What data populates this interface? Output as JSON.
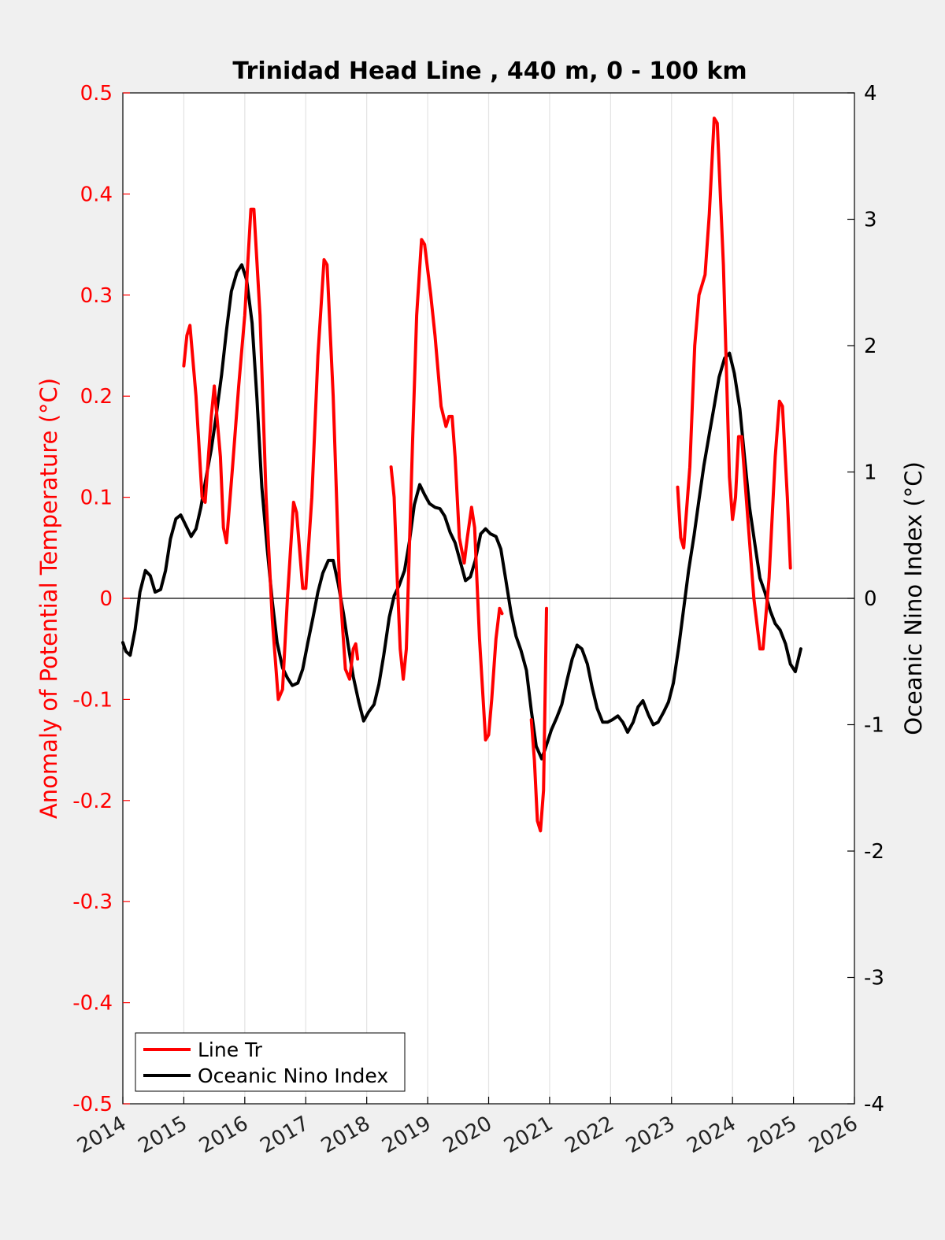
{
  "chart_data": {
    "type": "line",
    "title": "Trinidad Head Line , 440 m, 0 - 100 km",
    "xlabel": "",
    "ylabel_left": "Anomaly of Potential Temperature (°C)",
    "ylabel_right": "Oceanic Nino Index (°C)",
    "xlim": [
      2014,
      2026
    ],
    "ylim_left": [
      -0.5,
      0.5
    ],
    "ylim_right": [
      -4,
      4
    ],
    "x_ticks": [
      "2014",
      "2015",
      "2016",
      "2017",
      "2018",
      "2019",
      "2020",
      "2021",
      "2022",
      "2023",
      "2024",
      "2025",
      "2026"
    ],
    "y_ticks_left": [
      "0.5",
      "0.4",
      "0.3",
      "0.2",
      "0.1",
      "0",
      "-0.1",
      "-0.2",
      "-0.3",
      "-0.4",
      "-0.5"
    ],
    "y_ticks_right": [
      "4",
      "3",
      "2",
      "1",
      "0",
      "-1",
      "-2",
      "-3",
      "-4"
    ],
    "grid": "vertical",
    "zero_line": true,
    "legend_position": "bottom-left",
    "colors": {
      "left_axis": "#ff0000",
      "right_axis": "#000000",
      "line_tr": "#ff0000",
      "oni": "#000000"
    },
    "series": [
      {
        "name": "Line Tr",
        "axis": "left",
        "segments": [
          [
            [
              2015.0,
              0.23
            ],
            [
              2015.05,
              0.26
            ],
            [
              2015.1,
              0.27
            ],
            [
              2015.2,
              0.2
            ],
            [
              2015.3,
              0.1
            ],
            [
              2015.35,
              0.095
            ],
            [
              2015.45,
              0.18
            ],
            [
              2015.5,
              0.21
            ],
            [
              2015.6,
              0.14
            ],
            [
              2015.65,
              0.07
            ],
            [
              2015.7,
              0.055
            ],
            [
              2015.8,
              0.13
            ],
            [
              2015.9,
              0.21
            ],
            [
              2016.0,
              0.28
            ],
            [
              2016.1,
              0.385
            ],
            [
              2016.15,
              0.385
            ],
            [
              2016.25,
              0.28
            ],
            [
              2016.35,
              0.1
            ],
            [
              2016.45,
              -0.02
            ],
            [
              2016.55,
              -0.1
            ],
            [
              2016.62,
              -0.09
            ],
            [
              2016.7,
              0.0
            ],
            [
              2016.8,
              0.095
            ],
            [
              2016.85,
              0.085
            ],
            [
              2016.95,
              0.01
            ],
            [
              2017.0,
              0.01
            ],
            [
              2017.1,
              0.1
            ],
            [
              2017.2,
              0.24
            ],
            [
              2017.3,
              0.335
            ],
            [
              2017.35,
              0.33
            ],
            [
              2017.45,
              0.2
            ],
            [
              2017.55,
              0.02
            ],
            [
              2017.65,
              -0.07
            ],
            [
              2017.72,
              -0.08
            ],
            [
              2017.78,
              -0.05
            ],
            [
              2017.82,
              -0.045
            ],
            [
              2017.85,
              -0.06
            ]
          ],
          [
            [
              2018.4,
              0.13
            ],
            [
              2018.45,
              0.1
            ],
            [
              2018.5,
              0.02
            ],
            [
              2018.55,
              -0.05
            ],
            [
              2018.6,
              -0.08
            ],
            [
              2018.65,
              -0.05
            ],
            [
              2018.75,
              0.15
            ],
            [
              2018.82,
              0.28
            ],
            [
              2018.9,
              0.355
            ],
            [
              2018.95,
              0.35
            ],
            [
              2019.05,
              0.3
            ],
            [
              2019.12,
              0.26
            ],
            [
              2019.22,
              0.19
            ],
            [
              2019.3,
              0.17
            ],
            [
              2019.35,
              0.18
            ],
            [
              2019.4,
              0.18
            ],
            [
              2019.45,
              0.14
            ],
            [
              2019.52,
              0.06
            ],
            [
              2019.6,
              0.035
            ],
            [
              2019.65,
              0.06
            ],
            [
              2019.72,
              0.09
            ],
            [
              2019.77,
              0.07
            ],
            [
              2019.85,
              -0.04
            ],
            [
              2019.95,
              -0.14
            ],
            [
              2020.0,
              -0.135
            ],
            [
              2020.05,
              -0.1
            ],
            [
              2020.12,
              -0.04
            ],
            [
              2020.18,
              -0.01
            ],
            [
              2020.22,
              -0.015
            ]
          ],
          [
            [
              2020.7,
              -0.12
            ],
            [
              2020.75,
              -0.16
            ],
            [
              2020.8,
              -0.22
            ],
            [
              2020.85,
              -0.23
            ],
            [
              2020.9,
              -0.19
            ],
            [
              2020.95,
              -0.01
            ]
          ],
          [
            [
              2023.1,
              0.11
            ],
            [
              2023.15,
              0.06
            ],
            [
              2023.2,
              0.05
            ],
            [
              2023.3,
              0.13
            ],
            [
              2023.38,
              0.25
            ],
            [
              2023.45,
              0.3
            ],
            [
              2023.55,
              0.32
            ],
            [
              2023.62,
              0.38
            ],
            [
              2023.7,
              0.475
            ],
            [
              2023.75,
              0.47
            ],
            [
              2023.85,
              0.33
            ],
            [
              2023.95,
              0.12
            ],
            [
              2024.0,
              0.078
            ],
            [
              2024.05,
              0.1
            ],
            [
              2024.1,
              0.16
            ],
            [
              2024.15,
              0.16
            ],
            [
              2024.25,
              0.08
            ],
            [
              2024.35,
              0.0
            ],
            [
              2024.45,
              -0.05
            ],
            [
              2024.5,
              -0.05
            ],
            [
              2024.6,
              0.02
            ],
            [
              2024.7,
              0.14
            ],
            [
              2024.77,
              0.195
            ],
            [
              2024.82,
              0.19
            ],
            [
              2024.9,
              0.1
            ],
            [
              2024.95,
              0.03
            ]
          ]
        ]
      },
      {
        "name": "Oceanic Nino Index",
        "axis": "right",
        "segments": [
          [
            [
              2014.0,
              -0.35
            ],
            [
              2014.05,
              -0.42
            ],
            [
              2014.12,
              -0.45
            ],
            [
              2014.2,
              -0.25
            ],
            [
              2014.28,
              0.05
            ],
            [
              2014.37,
              0.22
            ],
            [
              2014.45,
              0.18
            ],
            [
              2014.53,
              0.05
            ],
            [
              2014.62,
              0.07
            ],
            [
              2014.7,
              0.22
            ],
            [
              2014.78,
              0.47
            ],
            [
              2014.87,
              0.63
            ],
            [
              2014.95,
              0.66
            ],
            [
              2015.03,
              0.58
            ],
            [
              2015.12,
              0.49
            ],
            [
              2015.2,
              0.55
            ],
            [
              2015.28,
              0.72
            ],
            [
              2015.37,
              0.97
            ],
            [
              2015.45,
              1.18
            ],
            [
              2015.53,
              1.44
            ],
            [
              2015.62,
              1.77
            ],
            [
              2015.7,
              2.12
            ],
            [
              2015.78,
              2.43
            ],
            [
              2015.87,
              2.58
            ],
            [
              2015.95,
              2.64
            ],
            [
              2016.03,
              2.52
            ],
            [
              2016.12,
              2.18
            ],
            [
              2016.2,
              1.58
            ],
            [
              2016.28,
              0.88
            ],
            [
              2016.37,
              0.38
            ],
            [
              2016.45,
              -0.02
            ],
            [
              2016.53,
              -0.35
            ],
            [
              2016.62,
              -0.55
            ],
            [
              2016.7,
              -0.63
            ],
            [
              2016.78,
              -0.69
            ],
            [
              2016.87,
              -0.67
            ],
            [
              2016.95,
              -0.56
            ],
            [
              2017.03,
              -0.36
            ],
            [
              2017.12,
              -0.15
            ],
            [
              2017.2,
              0.05
            ],
            [
              2017.28,
              0.2
            ],
            [
              2017.37,
              0.3
            ],
            [
              2017.45,
              0.3
            ],
            [
              2017.53,
              0.12
            ],
            [
              2017.62,
              -0.12
            ],
            [
              2017.7,
              -0.38
            ],
            [
              2017.78,
              -0.62
            ],
            [
              2017.87,
              -0.82
            ],
            [
              2017.95,
              -0.97
            ],
            [
              2018.03,
              -0.9
            ],
            [
              2018.12,
              -0.84
            ],
            [
              2018.2,
              -0.68
            ],
            [
              2018.28,
              -0.45
            ],
            [
              2018.37,
              -0.15
            ],
            [
              2018.45,
              0.02
            ],
            [
              2018.53,
              0.1
            ],
            [
              2018.62,
              0.22
            ],
            [
              2018.7,
              0.45
            ],
            [
              2018.78,
              0.74
            ],
            [
              2018.87,
              0.9
            ],
            [
              2018.95,
              0.82
            ],
            [
              2019.03,
              0.75
            ],
            [
              2019.12,
              0.72
            ],
            [
              2019.2,
              0.71
            ],
            [
              2019.28,
              0.65
            ],
            [
              2019.37,
              0.52
            ],
            [
              2019.45,
              0.44
            ],
            [
              2019.53,
              0.3
            ],
            [
              2019.62,
              0.14
            ],
            [
              2019.7,
              0.17
            ],
            [
              2019.78,
              0.3
            ],
            [
              2019.87,
              0.51
            ],
            [
              2019.95,
              0.55
            ],
            [
              2020.03,
              0.51
            ],
            [
              2020.12,
              0.49
            ],
            [
              2020.2,
              0.39
            ],
            [
              2020.28,
              0.15
            ],
            [
              2020.37,
              -0.12
            ],
            [
              2020.45,
              -0.3
            ],
            [
              2020.53,
              -0.41
            ],
            [
              2020.62,
              -0.57
            ],
            [
              2020.7,
              -0.89
            ],
            [
              2020.78,
              -1.17
            ],
            [
              2020.87,
              -1.27
            ],
            [
              2020.95,
              -1.16
            ],
            [
              2021.03,
              -1.04
            ],
            [
              2021.12,
              -0.94
            ],
            [
              2021.2,
              -0.84
            ],
            [
              2021.28,
              -0.66
            ],
            [
              2021.37,
              -0.48
            ],
            [
              2021.45,
              -0.37
            ],
            [
              2021.53,
              -0.4
            ],
            [
              2021.62,
              -0.52
            ],
            [
              2021.7,
              -0.71
            ],
            [
              2021.78,
              -0.87
            ],
            [
              2021.87,
              -0.98
            ],
            [
              2021.95,
              -0.98
            ],
            [
              2022.03,
              -0.96
            ],
            [
              2022.12,
              -0.93
            ],
            [
              2022.2,
              -0.98
            ],
            [
              2022.28,
              -1.06
            ],
            [
              2022.37,
              -0.98
            ],
            [
              2022.45,
              -0.86
            ],
            [
              2022.53,
              -0.81
            ],
            [
              2022.62,
              -0.92
            ],
            [
              2022.7,
              -1.0
            ],
            [
              2022.78,
              -0.98
            ],
            [
              2022.87,
              -0.9
            ],
            [
              2022.95,
              -0.82
            ],
            [
              2023.03,
              -0.67
            ],
            [
              2023.12,
              -0.38
            ],
            [
              2023.2,
              -0.08
            ],
            [
              2023.28,
              0.22
            ],
            [
              2023.37,
              0.5
            ],
            [
              2023.45,
              0.78
            ],
            [
              2023.53,
              1.05
            ],
            [
              2023.62,
              1.3
            ],
            [
              2023.7,
              1.52
            ],
            [
              2023.78,
              1.75
            ],
            [
              2023.87,
              1.9
            ],
            [
              2023.95,
              1.94
            ],
            [
              2024.03,
              1.78
            ],
            [
              2024.12,
              1.5
            ],
            [
              2024.2,
              1.1
            ],
            [
              2024.28,
              0.72
            ],
            [
              2024.37,
              0.42
            ],
            [
              2024.45,
              0.16
            ],
            [
              2024.53,
              0.05
            ],
            [
              2024.62,
              -0.1
            ],
            [
              2024.7,
              -0.2
            ],
            [
              2024.78,
              -0.25
            ],
            [
              2024.87,
              -0.36
            ],
            [
              2024.95,
              -0.52
            ],
            [
              2025.03,
              -0.58
            ],
            [
              2025.12,
              -0.4
            ]
          ]
        ]
      }
    ]
  }
}
